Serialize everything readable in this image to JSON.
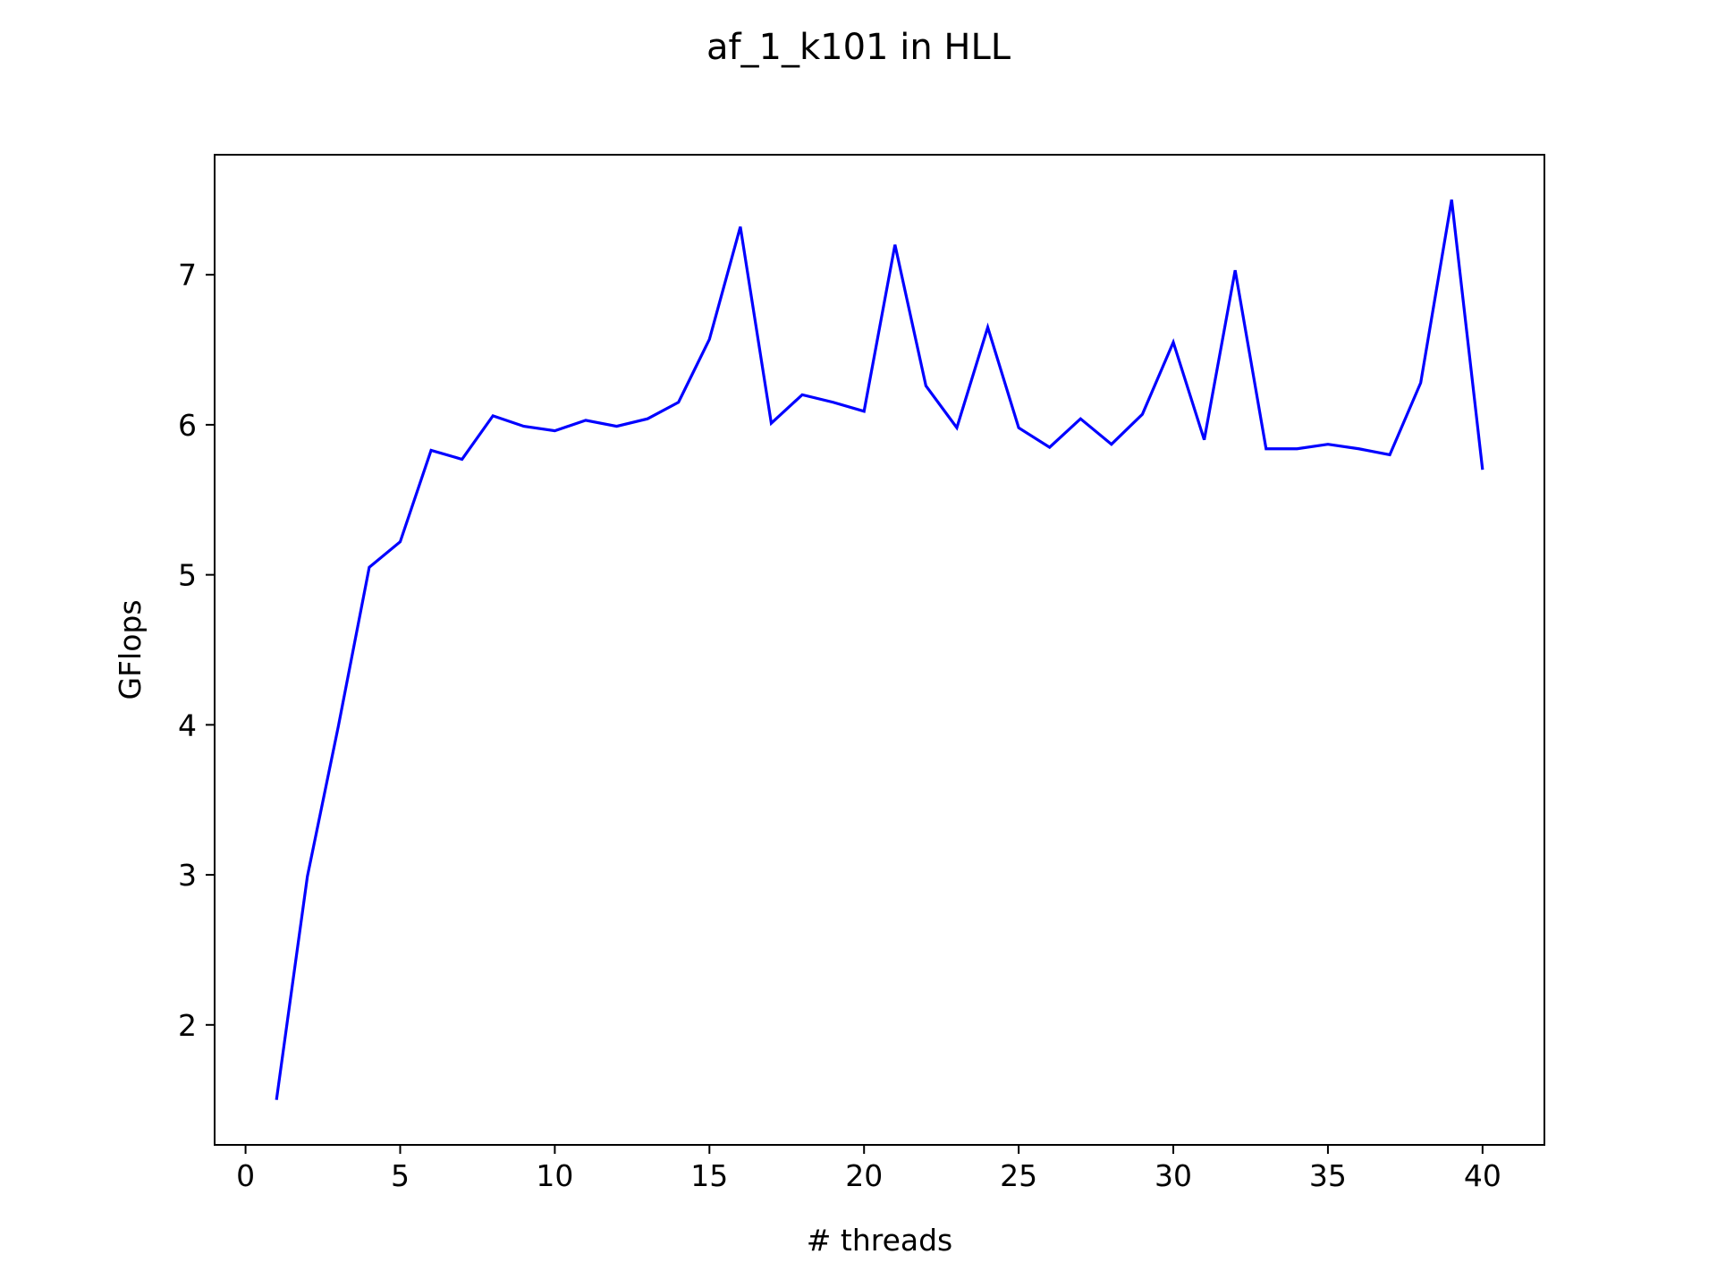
{
  "chart_data": {
    "type": "line",
    "title": "af_1_k101 in HLL",
    "xlabel": "# threads",
    "ylabel": "GFlops",
    "xlim": [
      -1,
      42
    ],
    "ylim": [
      1.2,
      7.8
    ],
    "xticks": [
      0,
      5,
      10,
      15,
      20,
      25,
      30,
      35,
      40
    ],
    "yticks": [
      2,
      3,
      4,
      5,
      6,
      7
    ],
    "xtick_labels": [
      "0",
      "5",
      "10",
      "15",
      "20",
      "25",
      "30",
      "35",
      "40"
    ],
    "ytick_labels": [
      "2",
      "3",
      "4",
      "5",
      "6",
      "7"
    ],
    "grid": false,
    "series": [
      {
        "name": "GFlops",
        "color": "#0000ff",
        "x": [
          1,
          2,
          3,
          4,
          5,
          6,
          7,
          8,
          9,
          10,
          11,
          12,
          13,
          14,
          15,
          16,
          17,
          18,
          19,
          20,
          21,
          22,
          23,
          24,
          25,
          26,
          27,
          28,
          29,
          30,
          31,
          32,
          33,
          34,
          35,
          36,
          37,
          38,
          39,
          40
        ],
        "y": [
          1.5,
          2.99,
          3.99,
          5.05,
          5.22,
          5.83,
          5.77,
          6.06,
          5.99,
          5.96,
          6.03,
          5.99,
          6.04,
          6.15,
          6.57,
          7.32,
          6.01,
          6.2,
          6.15,
          6.09,
          7.2,
          6.26,
          5.98,
          6.65,
          5.98,
          5.85,
          6.04,
          5.87,
          6.07,
          6.55,
          5.9,
          7.03,
          5.84,
          5.84,
          5.87,
          5.84,
          5.8,
          6.28,
          7.5,
          5.7
        ]
      }
    ]
  }
}
